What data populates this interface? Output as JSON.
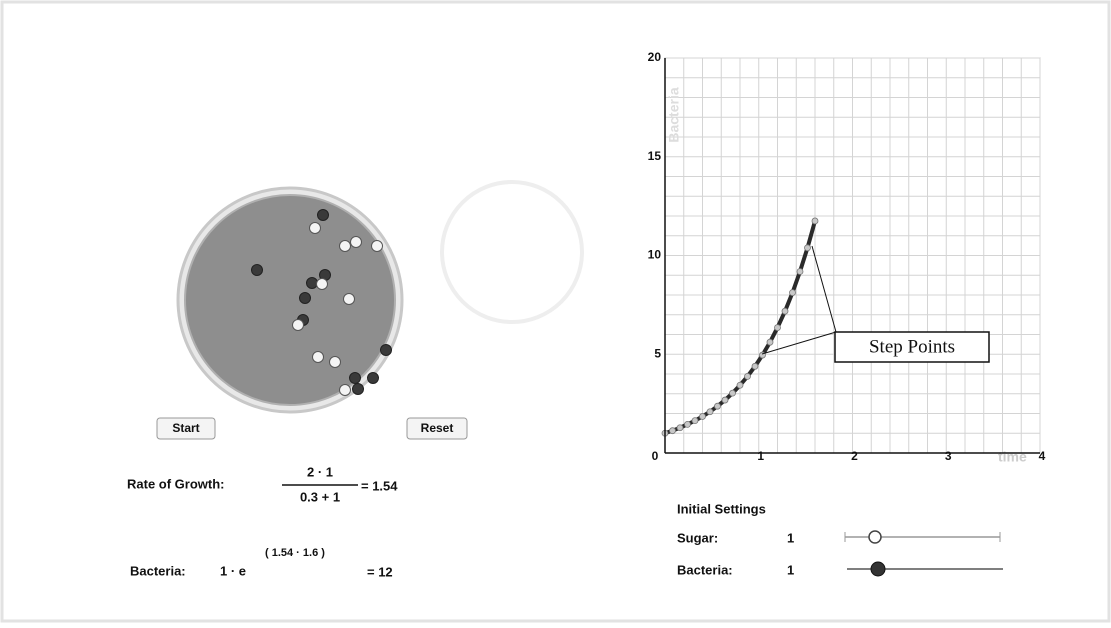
{
  "buttons": {
    "start": "Start",
    "reset": "Reset"
  },
  "rate_of_growth": {
    "label": "Rate of Growth:",
    "numerator": "2 · 1",
    "denominator": "0.3 + 1",
    "result": "= 1.54"
  },
  "bacteria_formula": {
    "label": "Bacteria:",
    "base": "1 · e",
    "exponent": "( 1.54 · 1.6 )",
    "result": "= 12"
  },
  "chart_data": {
    "type": "line",
    "y_label": "Bacteria",
    "x_label": "time",
    "annotation": "Step Points",
    "x": [
      0,
      0.08,
      0.16,
      0.24,
      0.32,
      0.4,
      0.48,
      0.56,
      0.64,
      0.72,
      0.8,
      0.88,
      0.96,
      1.04,
      1.12,
      1.2,
      1.28,
      1.36,
      1.44,
      1.52,
      1.6
    ],
    "values": [
      1,
      1.13,
      1.28,
      1.45,
      1.64,
      1.85,
      2.09,
      2.37,
      2.68,
      3.03,
      3.43,
      3.88,
      4.39,
      4.96,
      5.61,
      6.35,
      7.18,
      8.12,
      9.19,
      10.39,
      11.75
    ],
    "color": "#2a2a2a",
    "point_color": "#c8c8c8",
    "xlim": [
      0,
      4
    ],
    "ylim": [
      0,
      20
    ],
    "xticks": [
      0,
      1,
      2,
      3,
      4
    ],
    "yticks": [
      5,
      10,
      15,
      20
    ],
    "grid_x": [
      0.2,
      0.4,
      0.6,
      0.8,
      1,
      1.2,
      1.4,
      1.6,
      1.8,
      2,
      2.2,
      2.4,
      2.6,
      2.8,
      3,
      3.2,
      3.4,
      3.6,
      3.8,
      4
    ],
    "grid_y": [
      1,
      2,
      3,
      4,
      5,
      6,
      7,
      8,
      9,
      10,
      11,
      12,
      13,
      14,
      15,
      16,
      17,
      18,
      19,
      20
    ]
  },
  "initial_settings": {
    "title": "Initial Settings",
    "sugar": {
      "label": "Sugar:",
      "value": 1
    },
    "bacteria": {
      "label": "Bacteria:",
      "value": 1
    }
  }
}
